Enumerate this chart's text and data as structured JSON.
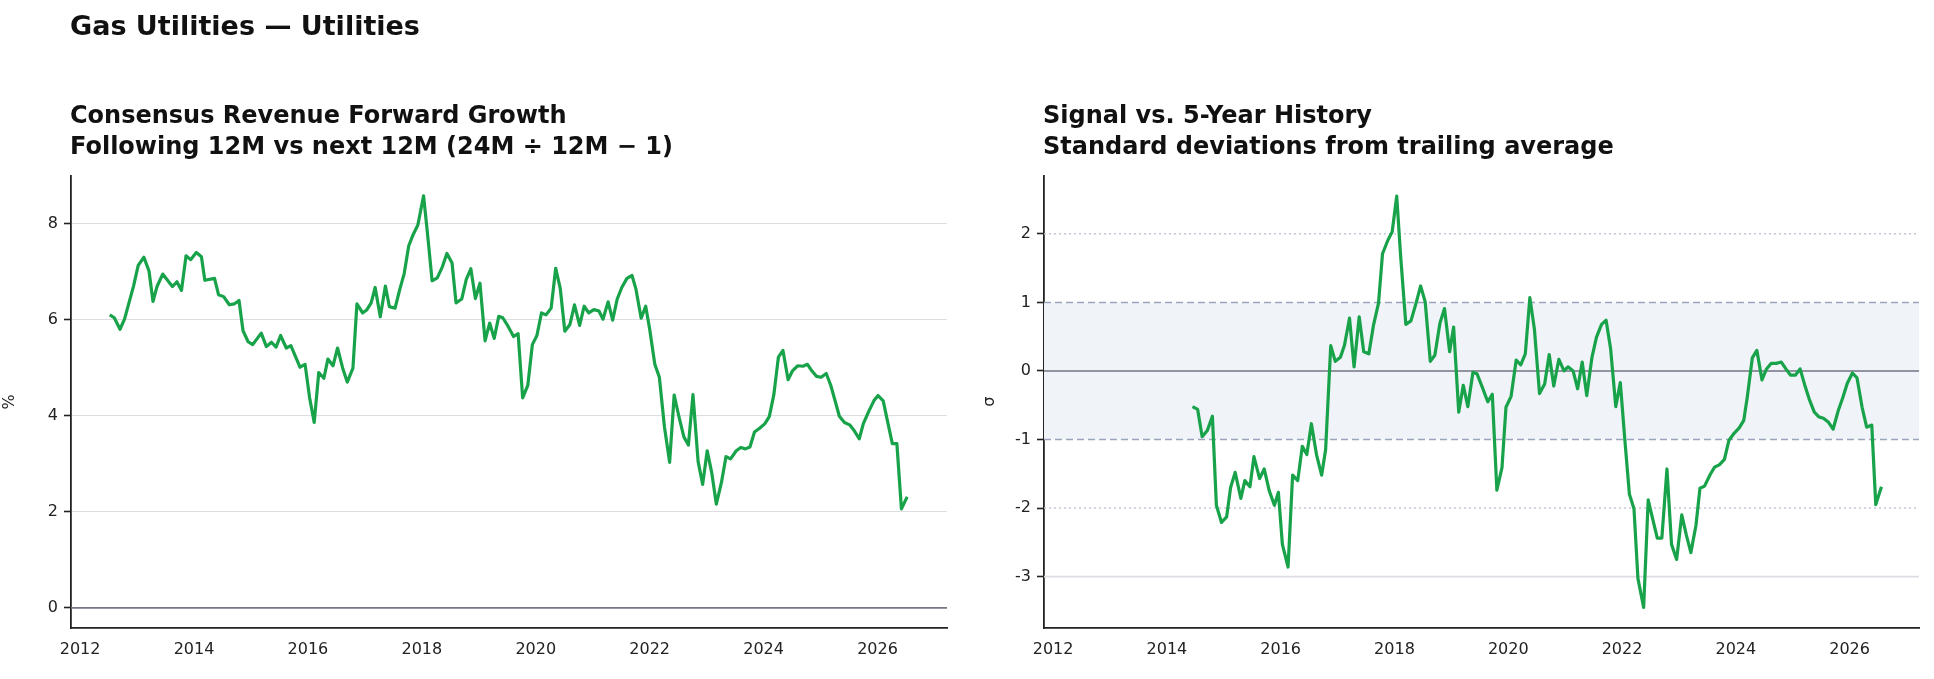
{
  "chart_data": [
    {
      "type": "other",
      "title": "Gas Utilities — Utilities"
    },
    {
      "type": "line",
      "title": "Consensus Revenue Forward Growth",
      "subtitle": "Following 12M vs next 12M (24M ÷ 12M − 1)",
      "ylabel": "%",
      "color": "#18a34a",
      "x": [
        2012.52,
        2012.6,
        2012.7,
        2012.78,
        2012.94,
        2013.02,
        2013.12,
        2013.21,
        2013.28,
        2013.35,
        2013.45,
        2013.62,
        2013.7,
        2013.78,
        2013.86,
        2013.94,
        2014.04,
        2014.13,
        2014.19,
        2014.36,
        2014.43,
        2014.52,
        2014.62,
        2014.71,
        2014.79,
        2014.86,
        2014.95,
        2015.03,
        2015.18,
        2015.27,
        2015.36,
        2015.44,
        2015.52,
        2015.62,
        2015.7,
        2015.86,
        2015.95,
        2016.03,
        2016.11,
        2016.19,
        2016.28,
        2016.35,
        2016.44,
        2016.52,
        2016.61,
        2016.69,
        2016.79,
        2016.86,
        2016.96,
        2017.03,
        2017.11,
        2017.18,
        2017.27,
        2017.36,
        2017.43,
        2017.53,
        2017.61,
        2017.69,
        2017.77,
        2017.85,
        2017.93,
        2018.03,
        2018.1,
        2018.18,
        2018.27,
        2018.36,
        2018.44,
        2018.53,
        2018.6,
        2018.7,
        2018.78,
        2018.86,
        2018.94,
        2019.02,
        2019.11,
        2019.19,
        2019.27,
        2019.35,
        2019.42,
        2019.51,
        2019.61,
        2019.69,
        2019.77,
        2019.86,
        2019.94,
        2020.02,
        2020.1,
        2020.18,
        2020.27,
        2020.35,
        2020.43,
        2020.51,
        2020.6,
        2020.68,
        2020.77,
        2020.85,
        2020.93,
        2021.02,
        2021.11,
        2021.18,
        2021.27,
        2021.35,
        2021.43,
        2021.51,
        2021.6,
        2021.69,
        2021.76,
        2021.85,
        2021.93,
        2022.0,
        2022.09,
        2022.17,
        2022.26,
        2022.35,
        2022.43,
        2022.51,
        2022.6,
        2022.68,
        2022.76,
        2022.85,
        2022.93,
        2023.01,
        2023.09,
        2023.17,
        2023.26,
        2023.34,
        2023.42,
        2023.52,
        2023.6,
        2023.68,
        2023.76,
        2023.84,
        2023.93,
        2024.02,
        2024.1,
        2024.18,
        2024.26,
        2024.34,
        2024.43,
        2024.51,
        2024.6,
        2024.69,
        2024.77,
        2024.85,
        2024.93,
        2025.01,
        2025.1,
        2025.18,
        2025.26,
        2025.33,
        2025.42,
        2025.51,
        2025.59,
        2025.68,
        2025.75,
        2025.85,
        2025.94,
        2026.01,
        2026.1,
        2026.18,
        2026.26,
        2026.34,
        2026.42,
        2026.52
      ],
      "values": [
        6.1,
        6.04,
        5.8,
        6.01,
        6.71,
        7.13,
        7.3,
        7.01,
        6.38,
        6.69,
        6.95,
        6.69,
        6.79,
        6.61,
        7.33,
        7.25,
        7.4,
        7.31,
        6.82,
        6.86,
        6.52,
        6.48,
        6.31,
        6.33,
        6.4,
        5.77,
        5.54,
        5.48,
        5.72,
        5.44,
        5.53,
        5.43,
        5.67,
        5.41,
        5.46,
        5.01,
        5.07,
        4.37,
        3.86,
        4.9,
        4.78,
        5.18,
        5.04,
        5.41,
        4.99,
        4.7,
        4.99,
        6.33,
        6.14,
        6.2,
        6.35,
        6.67,
        6.06,
        6.7,
        6.27,
        6.24,
        6.62,
        6.96,
        7.54,
        7.78,
        7.97,
        8.58,
        7.78,
        6.81,
        6.87,
        7.1,
        7.38,
        7.18,
        6.35,
        6.43,
        6.84,
        7.06,
        6.44,
        6.76,
        5.56,
        5.93,
        5.61,
        6.07,
        6.04,
        5.87,
        5.65,
        5.71,
        4.37,
        4.63,
        5.48,
        5.67,
        6.14,
        6.1,
        6.24,
        7.07,
        6.65,
        5.76,
        5.9,
        6.31,
        5.88,
        6.28,
        6.14,
        6.21,
        6.18,
        6.01,
        6.37,
        5.99,
        6.43,
        6.67,
        6.86,
        6.92,
        6.63,
        6.03,
        6.28,
        5.8,
        5.07,
        4.8,
        3.76,
        3.03,
        4.43,
        4.0,
        3.56,
        3.39,
        4.44,
        3.05,
        2.57,
        3.27,
        2.81,
        2.16,
        2.61,
        3.15,
        3.1,
        3.27,
        3.34,
        3.31,
        3.35,
        3.66,
        3.74,
        3.83,
        3.98,
        4.44,
        5.22,
        5.36,
        4.75,
        4.94,
        5.04,
        5.03,
        5.07,
        4.93,
        4.82,
        4.8,
        4.88,
        4.63,
        4.29,
        3.99,
        3.86,
        3.81,
        3.69,
        3.52,
        3.83,
        4.1,
        4.32,
        4.42,
        4.31,
        3.86,
        3.42,
        3.42,
        2.06,
        2.31
      ],
      "xlim": [
        2011.84,
        2027.22
      ],
      "xticks": [
        2012,
        2014,
        2016,
        2018,
        2020,
        2022,
        2024,
        2026
      ],
      "ylim": [
        -0.42,
        9.0
      ],
      "yticks": [
        0,
        2,
        4,
        6,
        8
      ],
      "grid": "y",
      "ref_lines": [
        {
          "axis": "y",
          "value": 0,
          "color": "#757585",
          "line_style": "solid"
        }
      ]
    },
    {
      "type": "line",
      "title": "Signal vs. 5-Year History",
      "subtitle": "Standard deviations from trailing average",
      "ylabel": "σ",
      "color": "#18a34a",
      "x": [
        2014.45,
        2014.54,
        2014.62,
        2014.71,
        2014.8,
        2014.87,
        2014.96,
        2015.05,
        2015.12,
        2015.2,
        2015.3,
        2015.37,
        2015.46,
        2015.53,
        2015.63,
        2015.71,
        2015.8,
        2015.89,
        2015.96,
        2016.03,
        2016.13,
        2016.21,
        2016.3,
        2016.38,
        2016.46,
        2016.54,
        2016.63,
        2016.72,
        2016.79,
        2016.88,
        2016.96,
        2017.05,
        2017.12,
        2017.21,
        2017.29,
        2017.38,
        2017.46,
        2017.55,
        2017.63,
        2017.72,
        2017.79,
        2017.88,
        2017.96,
        2018.04,
        2018.11,
        2018.2,
        2018.29,
        2018.38,
        2018.46,
        2018.54,
        2018.63,
        2018.71,
        2018.8,
        2018.88,
        2018.97,
        2019.04,
        2019.13,
        2019.21,
        2019.29,
        2019.38,
        2019.45,
        2019.55,
        2019.64,
        2019.72,
        2019.8,
        2019.89,
        2019.96,
        2020.05,
        2020.14,
        2020.22,
        2020.3,
        2020.38,
        2020.46,
        2020.55,
        2020.64,
        2020.72,
        2020.8,
        2020.89,
        2020.98,
        2021.05,
        2021.14,
        2021.22,
        2021.3,
        2021.38,
        2021.47,
        2021.55,
        2021.64,
        2021.72,
        2021.8,
        2021.89,
        2021.97,
        2022.05,
        2022.13,
        2022.21,
        2022.28,
        2022.38,
        2022.46,
        2022.53,
        2022.62,
        2022.7,
        2022.79,
        2022.87,
        2022.96,
        2023.05,
        2023.13,
        2023.21,
        2023.3,
        2023.37,
        2023.45,
        2023.55,
        2023.63,
        2023.71,
        2023.8,
        2023.88,
        2023.97,
        2024.06,
        2024.14,
        2024.2,
        2024.29,
        2024.37,
        2024.46,
        2024.54,
        2024.62,
        2024.71,
        2024.8,
        2024.88,
        2024.96,
        2025.05,
        2025.13,
        2025.21,
        2025.29,
        2025.38,
        2025.46,
        2025.54,
        2025.63,
        2025.71,
        2025.8,
        2025.88,
        2025.96,
        2026.05,
        2026.13,
        2026.22,
        2026.3,
        2026.39,
        2026.46,
        2026.56
      ],
      "values": [
        -0.52,
        -0.56,
        -0.96,
        -0.87,
        -0.66,
        -1.96,
        -2.21,
        -2.13,
        -1.7,
        -1.48,
        -1.86,
        -1.6,
        -1.69,
        -1.25,
        -1.57,
        -1.43,
        -1.75,
        -1.96,
        -1.77,
        -2.53,
        -2.86,
        -1.52,
        -1.6,
        -1.1,
        -1.22,
        -0.77,
        -1.22,
        -1.52,
        -1.15,
        0.37,
        0.14,
        0.2,
        0.37,
        0.77,
        0.06,
        0.79,
        0.28,
        0.25,
        0.66,
        0.99,
        1.71,
        1.9,
        2.03,
        2.55,
        1.66,
        0.68,
        0.73,
        0.99,
        1.24,
        1.01,
        0.14,
        0.23,
        0.7,
        0.91,
        0.28,
        0.64,
        -0.6,
        -0.21,
        -0.52,
        -0.02,
        -0.04,
        -0.25,
        -0.45,
        -0.34,
        -1.74,
        -1.41,
        -0.53,
        -0.37,
        0.16,
        0.09,
        0.25,
        1.07,
        0.61,
        -0.33,
        -0.19,
        0.24,
        -0.22,
        0.17,
        0.0,
        0.06,
        0.0,
        -0.26,
        0.13,
        -0.36,
        0.19,
        0.49,
        0.68,
        0.74,
        0.32,
        -0.52,
        -0.17,
        -1.01,
        -1.8,
        -2.01,
        -3.03,
        -3.45,
        -1.88,
        -2.13,
        -2.44,
        -2.44,
        -1.43,
        -2.53,
        -2.75,
        -2.1,
        -2.39,
        -2.65,
        -2.25,
        -1.71,
        -1.68,
        -1.51,
        -1.4,
        -1.37,
        -1.29,
        -1.01,
        -0.91,
        -0.83,
        -0.72,
        -0.39,
        0.19,
        0.3,
        -0.13,
        0.03,
        0.11,
        0.11,
        0.13,
        0.03,
        -0.06,
        -0.06,
        0.03,
        -0.2,
        -0.41,
        -0.6,
        -0.67,
        -0.69,
        -0.75,
        -0.85,
        -0.58,
        -0.39,
        -0.18,
        -0.03,
        -0.1,
        -0.53,
        -0.82,
        -0.79,
        -1.95,
        -1.69
      ],
      "xlim": [
        2011.84,
        2027.22
      ],
      "xticks": [
        2012,
        2014,
        2016,
        2018,
        2020,
        2022,
        2024,
        2026
      ],
      "ylim": [
        -3.75,
        2.85
      ],
      "yticks": [
        -3,
        -2,
        -1,
        0,
        1,
        2
      ],
      "bands": [
        {
          "axis": "y",
          "from": -1,
          "to": 1,
          "color": "#f0f3f8"
        }
      ],
      "ref_lines": [
        {
          "axis": "y",
          "value": 0,
          "color": "#757585",
          "line_style": "solid"
        },
        {
          "axis": "y",
          "value": 1,
          "color": "#9aa5bb",
          "line_style": "dashed"
        },
        {
          "axis": "y",
          "value": -1,
          "color": "#9aa5bb",
          "line_style": "dashed"
        },
        {
          "axis": "y",
          "value": 2,
          "color": "#c3c9d8",
          "line_style": "dotted"
        },
        {
          "axis": "y",
          "value": -2,
          "color": "#c3c9d8",
          "line_style": "dotted"
        },
        {
          "axis": "y",
          "value": -3,
          "color": "#dddde4",
          "line_style": "solid"
        }
      ]
    }
  ]
}
